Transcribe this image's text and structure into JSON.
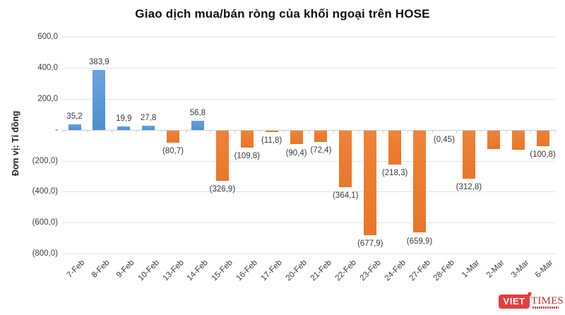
{
  "title": "Giao dịch mua/bán ròng của khối ngoại trên HOSE",
  "y_axis_title": "Đơn vị: Tỉ đồng",
  "chart_data": {
    "type": "bar",
    "title": "Giao dịch mua/bán ròng của khối ngoại trên HOSE",
    "xlabel": "",
    "ylabel": "Đơn vị: Tỉ đồng",
    "ylim": [
      -800,
      600
    ],
    "grid": true,
    "legend": "none",
    "categories": [
      "7-Feb",
      "8-Feb",
      "9-Feb",
      "10-Feb",
      "13-Feb",
      "14-Feb",
      "15-Feb",
      "16-Feb",
      "17-Feb",
      "20-Feb",
      "21-Feb",
      "22-Feb",
      "23-Feb",
      "24-Feb",
      "27-Feb",
      "28-Feb",
      "1-Mar",
      "2-Mar",
      "3-Mar",
      "6-Mar"
    ],
    "values": [
      35.2,
      383.9,
      19.9,
      27.8,
      -80.7,
      56.8,
      -326.9,
      -109.8,
      -11.8,
      -90.4,
      -72.4,
      -364.1,
      -677.9,
      -218.3,
      -659.9,
      -0.45,
      -312.8,
      -118,
      -125,
      -100.8
    ],
    "labels": [
      "35,2",
      "383,9",
      "19,9",
      "27,8",
      "(80,7)",
      "56,8",
      "(326,9)",
      "(109,8)",
      "(11,8)",
      "(90,4)",
      "(72,4)",
      "(364,1)",
      "(677,9)",
      "(218,3)",
      "(659,9)",
      "(0,45)",
      "(312,8)",
      "",
      "",
      "(100,8)"
    ],
    "ytick_values": [
      600,
      400,
      200,
      0,
      -200,
      -400,
      -600,
      -800
    ],
    "ytick_labels": [
      "600,0",
      "400,0",
      "200,0",
      "-",
      "(200,0)",
      "(400,0)",
      "(600,0)",
      "(800,0)"
    ],
    "positive_color": "#5B9BD5",
    "negative_color": "#ED7D31",
    "gridline_color": "#dde3ee"
  },
  "logo": {
    "box_text": "VIET",
    "serif_text": "TIMES",
    "brand_color": "#e33e3e"
  }
}
